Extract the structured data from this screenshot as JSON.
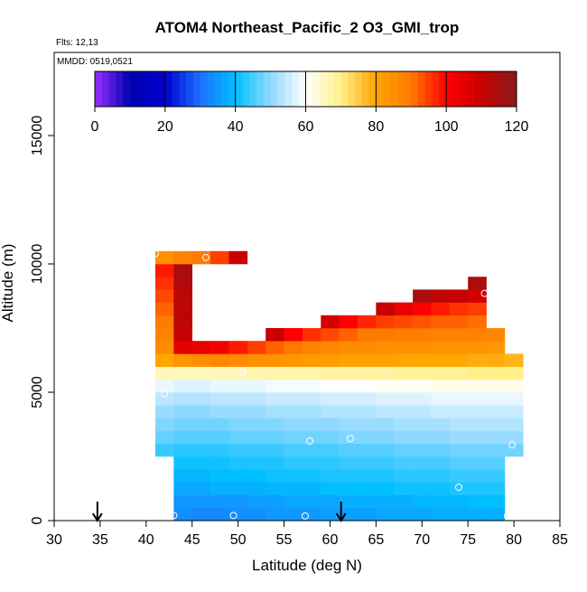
{
  "chart_data": {
    "type": "heatmap",
    "title": "ATOM4 Northeast_Pacific_2 O3_GMI_trop",
    "subtitle": "Flts: 12,13",
    "annotation": "MMDD: 0519,0521",
    "xlabel": "Latitude (deg N)",
    "ylabel": "Altitude (m)",
    "xlim": [
      30,
      85
    ],
    "xticks": [
      30,
      35,
      40,
      45,
      50,
      55,
      60,
      65,
      70,
      75,
      80,
      85
    ],
    "ylim": [
      0,
      18240
    ],
    "yticks": [
      0,
      5000,
      10000,
      15000
    ],
    "zlim": [
      0,
      120
    ],
    "zticks": [
      0,
      20,
      40,
      60,
      80,
      100,
      120
    ],
    "colors": [
      "#9b30ff",
      "#0000b0",
      "#0000cd",
      "#1e70ff",
      "#00bfff",
      "#8fd8ff",
      "#ffffff",
      "#fff08a",
      "#ffa500",
      "#ff7a00",
      "#ff0000",
      "#c80000",
      "#8b1a1a"
    ],
    "x_edges": [
      41,
      43,
      45,
      47,
      49,
      51,
      53,
      55,
      57,
      59,
      61,
      63,
      65,
      67,
      69,
      71,
      73,
      75,
      77,
      79,
      81
    ],
    "y_edges": [
      0,
      500,
      1000,
      1500,
      2000,
      2500,
      3000,
      3500,
      4000,
      4500,
      5000,
      5500,
      6000,
      6500,
      7000,
      7500,
      8000,
      8500,
      9000,
      9500,
      10000,
      10500
    ],
    "z": [
      [
        null,
        34,
        33,
        33,
        34,
        34,
        35,
        35,
        35,
        36,
        36,
        36,
        37,
        37,
        37,
        38,
        38,
        38,
        38,
        null
      ],
      [
        null,
        35,
        35,
        35,
        35,
        36,
        36,
        37,
        37,
        37,
        38,
        38,
        38,
        38,
        39,
        39,
        39,
        40,
        40,
        null
      ],
      [
        null,
        37,
        37,
        38,
        38,
        38,
        39,
        39,
        39,
        40,
        40,
        40,
        40,
        41,
        41,
        41,
        42,
        42,
        42,
        null
      ],
      [
        null,
        39,
        39,
        40,
        40,
        40,
        41,
        41,
        41,
        42,
        42,
        42,
        42,
        43,
        43,
        43,
        44,
        44,
        44,
        null
      ],
      [
        null,
        41,
        41,
        41,
        42,
        42,
        42,
        43,
        43,
        43,
        44,
        44,
        44,
        45,
        45,
        45,
        46,
        46,
        46,
        null
      ],
      [
        44,
        43,
        43,
        43,
        44,
        44,
        44,
        45,
        45,
        45,
        46,
        46,
        46,
        47,
        47,
        47,
        48,
        48,
        48,
        48
      ],
      [
        47,
        46,
        46,
        46,
        47,
        47,
        47,
        48,
        48,
        48,
        49,
        49,
        49,
        50,
        50,
        50,
        51,
        51,
        51,
        51
      ],
      [
        49,
        48,
        48,
        48,
        49,
        49,
        49,
        50,
        50,
        50,
        51,
        51,
        51,
        52,
        52,
        52,
        53,
        53,
        53,
        53
      ],
      [
        51,
        50,
        50,
        51,
        51,
        51,
        52,
        52,
        52,
        53,
        53,
        53,
        54,
        54,
        54,
        55,
        55,
        55,
        55,
        55
      ],
      [
        54,
        53,
        53,
        54,
        54,
        54,
        55,
        55,
        55,
        56,
        56,
        56,
        57,
        57,
        57,
        58,
        58,
        58,
        58,
        58
      ],
      [
        58,
        57,
        57,
        58,
        58,
        58,
        59,
        59,
        59,
        60,
        60,
        60,
        61,
        61,
        61,
        62,
        62,
        62,
        62,
        62
      ],
      [
        66,
        66,
        66,
        66,
        66,
        67,
        67,
        67,
        67,
        68,
        68,
        68,
        68,
        69,
        69,
        69,
        69,
        70,
        70,
        70
      ],
      [
        80,
        84,
        86,
        87,
        86,
        85,
        84,
        83,
        82,
        82,
        81,
        81,
        81,
        80,
        80,
        80,
        80,
        79,
        79,
        78
      ],
      [
        86,
        105,
        104,
        102,
        98,
        95,
        92,
        90,
        88,
        87,
        86,
        86,
        85,
        85,
        85,
        84,
        84,
        84,
        83,
        null
      ],
      [
        88,
        110,
        null,
        null,
        null,
        null,
        110,
        100,
        96,
        94,
        92,
        90,
        90,
        89,
        89,
        88,
        88,
        88,
        87,
        null
      ],
      [
        90,
        112,
        null,
        null,
        null,
        null,
        null,
        null,
        null,
        108,
        100,
        97,
        95,
        94,
        93,
        92,
        92,
        91,
        null,
        null
      ],
      [
        92,
        112,
        null,
        null,
        null,
        null,
        null,
        null,
        null,
        null,
        null,
        null,
        110,
        104,
        100,
        98,
        96,
        95,
        null,
        null
      ],
      [
        94,
        112,
        null,
        null,
        null,
        null,
        null,
        null,
        null,
        null,
        null,
        null,
        null,
        null,
        115,
        112,
        110,
        108,
        null,
        null
      ],
      [
        96,
        114,
        null,
        null,
        null,
        null,
        null,
        null,
        null,
        null,
        null,
        null,
        null,
        null,
        null,
        null,
        null,
        115,
        null,
        null
      ],
      [
        98,
        115,
        null,
        null,
        null,
        null,
        null,
        null,
        null,
        null,
        null,
        null,
        null,
        null,
        null,
        null,
        null,
        null,
        null,
        null
      ],
      [
        85,
        88,
        90,
        95,
        110,
        null,
        null,
        null,
        null,
        null,
        null,
        null,
        null,
        null,
        null,
        null,
        null,
        null,
        null,
        null
      ]
    ],
    "points_x": [
      41,
      46.5,
      50.5,
      42,
      57.8,
      62.2,
      79.8,
      74,
      43,
      49.5,
      57.3,
      79.3,
      76.8
    ],
    "points_y": [
      10400,
      10250,
      5800,
      4950,
      3100,
      3200,
      2950,
      1300,
      200,
      200,
      180,
      180,
      8850
    ],
    "arrows": [
      34.7,
      61.2
    ]
  }
}
